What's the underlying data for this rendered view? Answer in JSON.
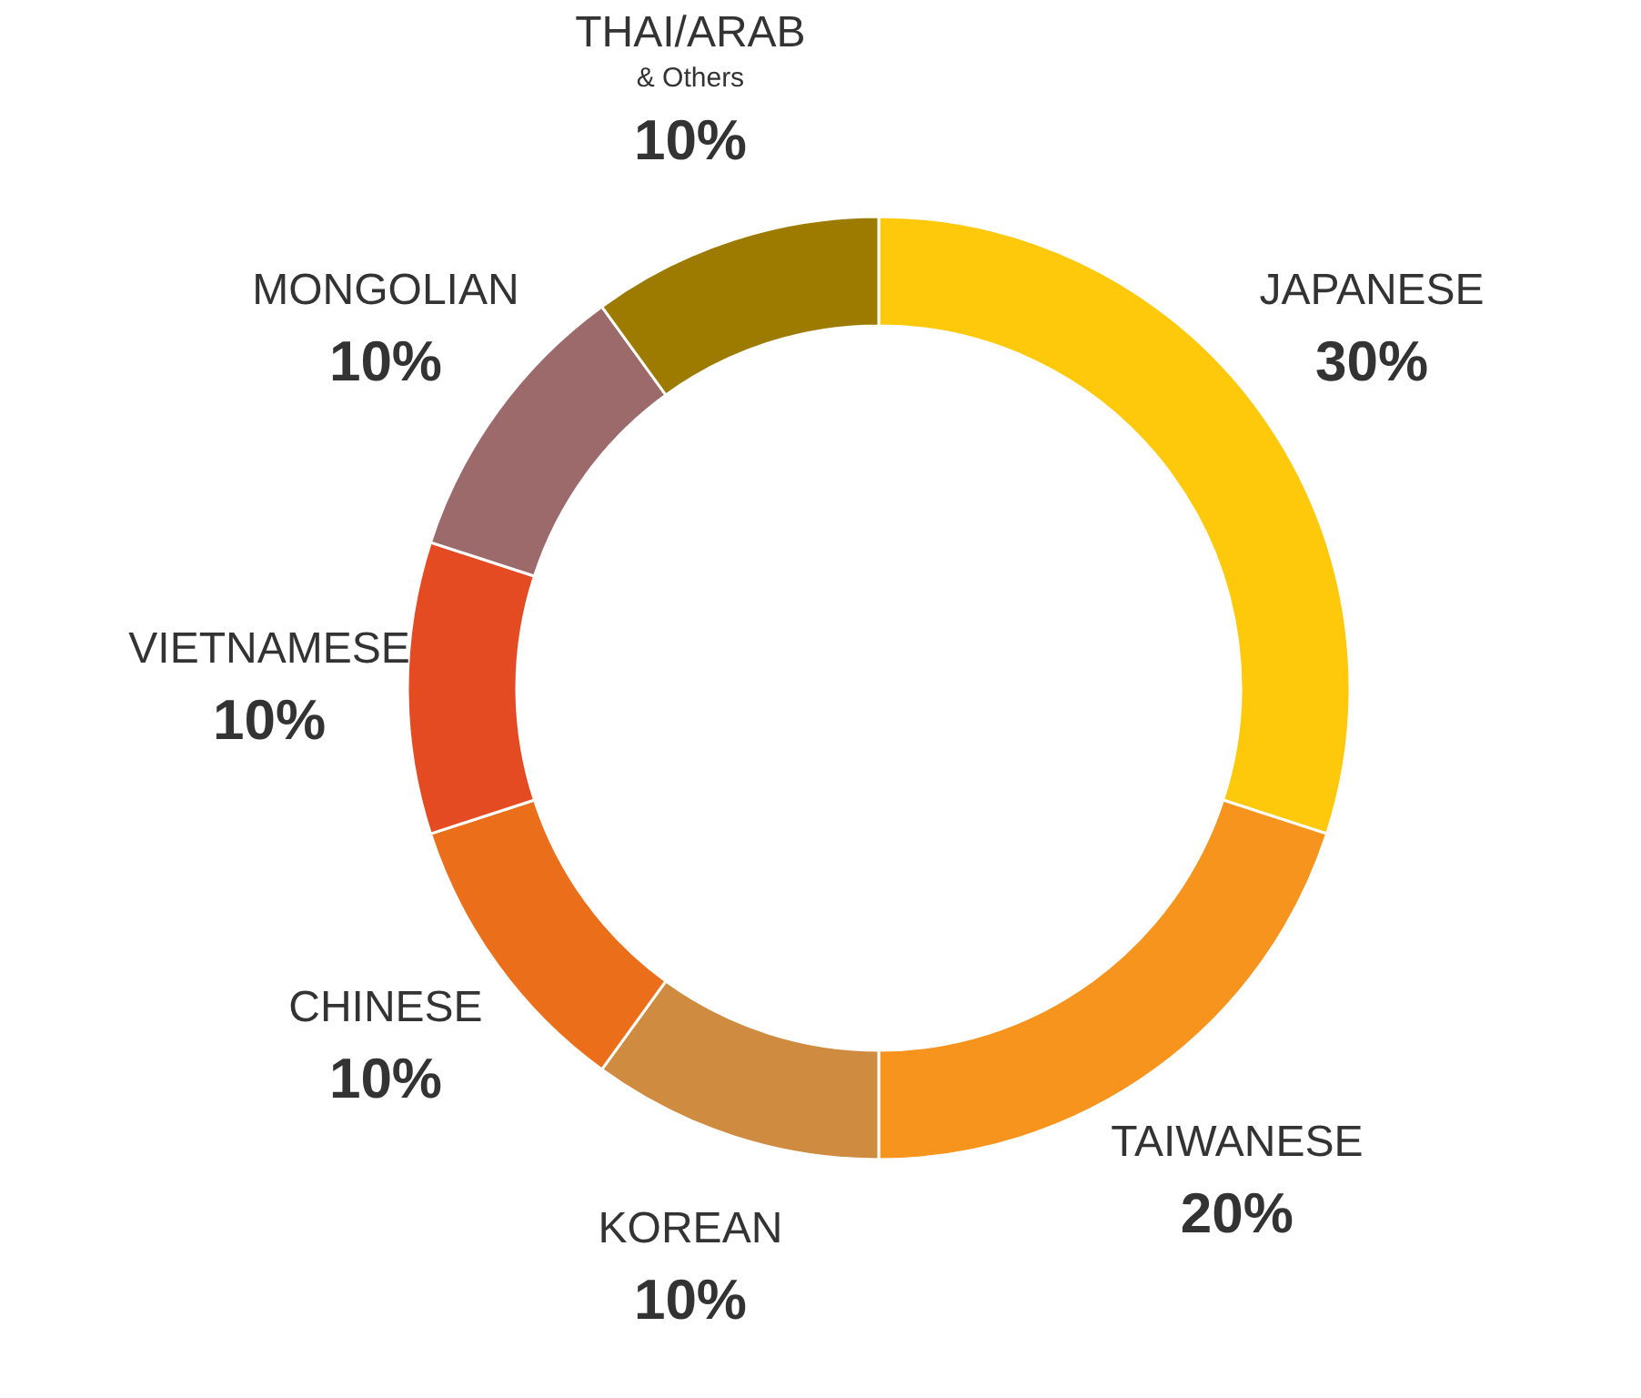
{
  "chart_data": {
    "type": "donut",
    "categories": [
      "JAPANESE",
      "TAIWANESE",
      "KOREAN",
      "CHINESE",
      "VIETNAMESE",
      "MONGOLIAN",
      "THAI/ARAB\n& Others"
    ],
    "values": [
      30,
      20,
      10,
      10,
      10,
      10,
      10
    ],
    "value_labels": [
      "30%",
      "20%",
      "10%",
      "10%",
      "10%",
      "10%",
      "10%"
    ],
    "colors": [
      "#fdc90a",
      "#f7941d",
      "#cf8b3f",
      "#eb6f1a",
      "#e44b22",
      "#9c6a6a",
      "#9c7b00"
    ],
    "legend": false
  }
}
